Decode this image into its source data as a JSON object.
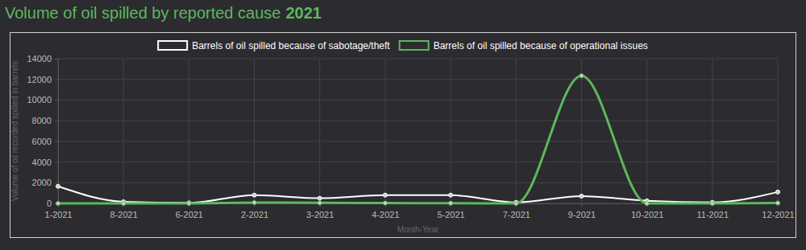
{
  "chart_data": {
    "type": "line",
    "title": "Volume of oil spilled by reported cause",
    "subtitle": "2021",
    "x_label": "Month-Year",
    "y_label": "Volume of oil recorded spilled in barrels",
    "categories": [
      "1-2021",
      "8-2021",
      "6-2021",
      "2-2021",
      "3-2021",
      "4-2021",
      "5-2021",
      "7-2021",
      "9-2021",
      "10-2021",
      "11-2021",
      "12-2021"
    ],
    "series": [
      {
        "name": "Barrels of oil spilled because of sabotage/theft",
        "color": "#ffffff",
        "marker": "circle",
        "values": [
          1650,
          150,
          50,
          800,
          500,
          800,
          800,
          100,
          700,
          250,
          100,
          1100
        ]
      },
      {
        "name": "Barrels of oil spilled because of operational issues",
        "color": "#5cb85c",
        "marker": "circle",
        "values": [
          0,
          0,
          0,
          80,
          50,
          30,
          20,
          0,
          12350,
          0,
          0,
          40
        ]
      }
    ],
    "ylim": [
      0,
      14000
    ],
    "yticks": [
      0,
      2000,
      4000,
      6000,
      8000,
      10000,
      12000,
      14000
    ],
    "grid": true,
    "legend": "top"
  }
}
